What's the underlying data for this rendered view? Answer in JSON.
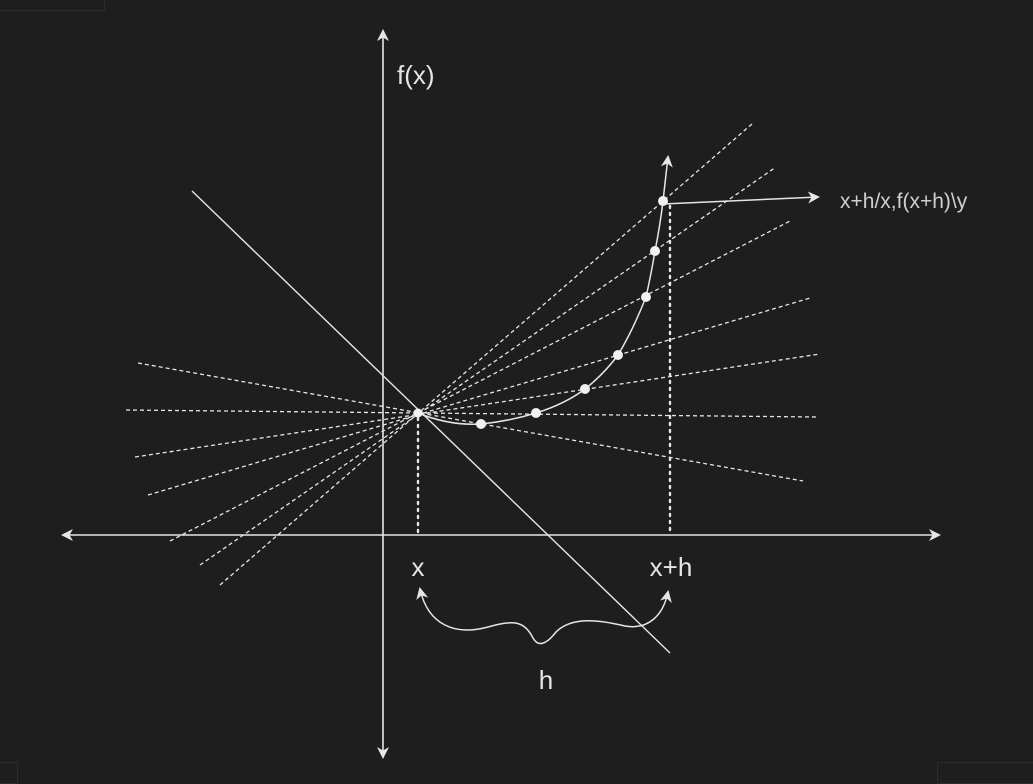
{
  "diagram": {
    "labels": {
      "y_axis": "f(x)",
      "x_point": "x",
      "x_plus_h": "x+h",
      "h": "h",
      "secant_annotation": "x+h/x,f(x+h)\\y"
    },
    "colors": {
      "background": "#1e1e1f",
      "stroke": "#e6e6e6",
      "point": "#f2f2f2"
    }
  }
}
